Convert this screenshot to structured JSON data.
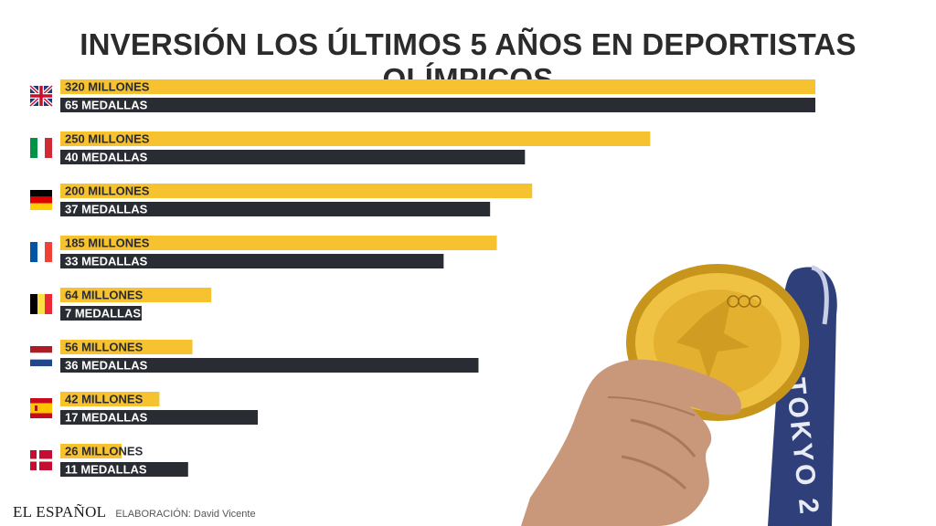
{
  "title": "INVERSIÓN LOS ÚLTIMOS 5 AÑOS EN DEPORTISTAS OLÍMPICOS",
  "footer": {
    "brand": "EL ESPAÑOL",
    "credit": "ELABORACIÓN: David Vicente"
  },
  "photo": {
    "medal_text": "TOKYO 2"
  },
  "colors": {
    "investment": "#f6c230",
    "medals": "#2a2c33",
    "title": "#2b2b2b"
  },
  "chart_data": {
    "type": "bar",
    "orientation": "horizontal",
    "title": "INVERSIÓN LOS ÚLTIMOS 5 AÑOS EN DEPORTISTAS OLÍMPICOS",
    "xlabel": "",
    "ylabel": "",
    "grid": false,
    "legend": "none",
    "categories": [
      {
        "icon": "flag-uk-icon"
      },
      {
        "icon": "flag-italy-icon"
      },
      {
        "icon": "flag-germany-icon"
      },
      {
        "icon": "flag-france-icon"
      },
      {
        "icon": "flag-belgium-icon"
      },
      {
        "icon": "flag-netherlands-icon"
      },
      {
        "icon": "flag-spain-icon"
      },
      {
        "icon": "flag-denmark-icon"
      }
    ],
    "series": [
      {
        "color": "#f6c230",
        "values": [
          320,
          250,
          200,
          185,
          64,
          56,
          42,
          26
        ],
        "labels": [
          "320 MILLONES",
          "250 MILLONES",
          "200 MILLONES",
          "185 MILLONES",
          "64 MILLONES",
          "56 MILLONES",
          "42 MILLONES",
          "26 MILLONES"
        ]
      },
      {
        "color": "#2a2c33",
        "values": [
          65,
          40,
          37,
          33,
          7,
          36,
          17,
          11
        ],
        "labels": [
          "65 MEDALLAS",
          "40 MEDALLAS",
          "37 MEDALLAS",
          "33 MEDALLAS",
          "7 MEDALLAS",
          "36 MEDALLAS",
          "17 MEDALLAS",
          "11 MEDALLAS"
        ]
      }
    ]
  }
}
